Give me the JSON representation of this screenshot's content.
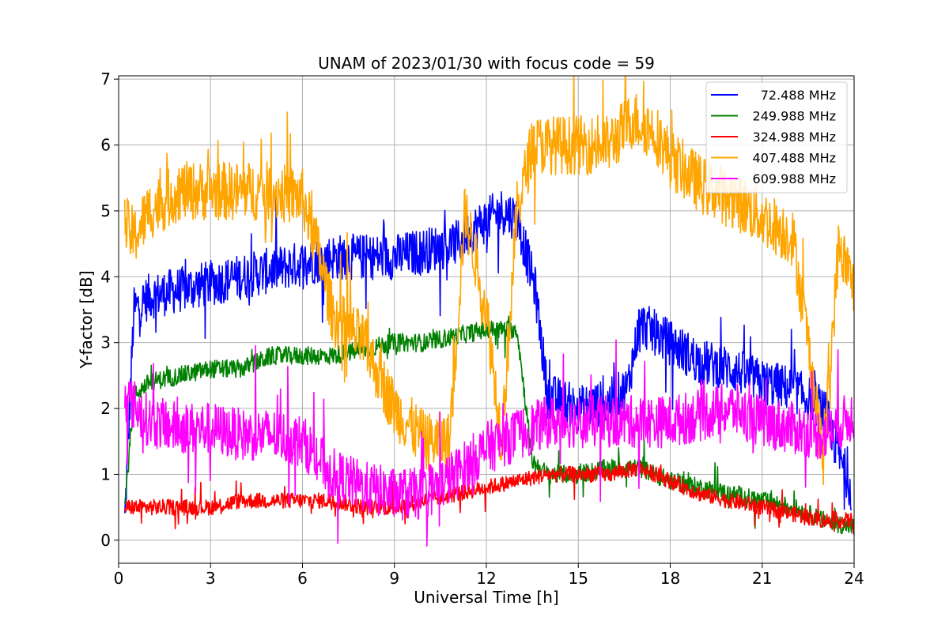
{
  "chart_data": {
    "type": "line",
    "title": "UNAM of 2023/01/30 with focus code = 59",
    "xlabel": "Universal Time [h]",
    "ylabel": "Y-factor [dB]",
    "xlim": [
      0,
      24
    ],
    "ylim": [
      -0.35,
      7.05
    ],
    "xticks": [
      0,
      3,
      6,
      9,
      12,
      15,
      18,
      21,
      24
    ],
    "yticks": [
      0,
      1,
      2,
      3,
      4,
      5,
      6,
      7
    ],
    "grid": true,
    "legend_position": "top-right",
    "series": [
      {
        "name": "72.488 MHz",
        "color": "#0000ff",
        "x": [
          0.2,
          0.5,
          1,
          2,
          3,
          4,
          5,
          6,
          7,
          8,
          9,
          10,
          11,
          11.8,
          12.5,
          13,
          13.6,
          14,
          15,
          16,
          16.6,
          17,
          18,
          19,
          20,
          21,
          22,
          23,
          23.5,
          23.9
        ],
        "y": [
          0.3,
          3.5,
          3.7,
          3.8,
          3.9,
          4.0,
          4.1,
          4.2,
          4.3,
          4.3,
          4.3,
          4.4,
          4.5,
          4.8,
          5.0,
          4.9,
          3.8,
          2.2,
          2.0,
          2.1,
          2.3,
          3.3,
          3.0,
          2.7,
          2.6,
          2.4,
          2.3,
          2.0,
          1.3,
          0.8
        ],
        "noise": 0.35
      },
      {
        "name": "249.988 MHz",
        "color": "#008000",
        "x": [
          0.2,
          0.5,
          1,
          2,
          3,
          4,
          5,
          6,
          7,
          8,
          9,
          10,
          11,
          12,
          13,
          13.5,
          14,
          15,
          16,
          17,
          18,
          19,
          20,
          21,
          22,
          23,
          24
        ],
        "y": [
          0.5,
          2.2,
          2.4,
          2.5,
          2.6,
          2.6,
          2.8,
          2.8,
          2.8,
          2.9,
          3.0,
          3.0,
          3.1,
          3.2,
          3.2,
          1.2,
          1.0,
          1.0,
          1.1,
          1.1,
          0.9,
          0.8,
          0.7,
          0.6,
          0.5,
          0.3,
          0.2
        ],
        "noise": 0.14
      },
      {
        "name": "324.988 MHz",
        "color": "#ff0000",
        "x": [
          0.2,
          1,
          2,
          3,
          4,
          5,
          6,
          7,
          8,
          9,
          10,
          11,
          12,
          13,
          14,
          15,
          16,
          17,
          18,
          19,
          20,
          21,
          22,
          23,
          24
        ],
        "y": [
          0.5,
          0.5,
          0.5,
          0.5,
          0.6,
          0.6,
          0.6,
          0.6,
          0.5,
          0.5,
          0.6,
          0.7,
          0.8,
          0.9,
          1.0,
          1.0,
          1.0,
          1.1,
          0.9,
          0.7,
          0.6,
          0.5,
          0.4,
          0.3,
          0.3
        ],
        "noise": 0.12
      },
      {
        "name": "407.488 MHz",
        "color": "#ffa500",
        "x": [
          0.2,
          0.5,
          1,
          2,
          3,
          4,
          5,
          6,
          6.5,
          7,
          8,
          9,
          10,
          10.8,
          11.3,
          12,
          12.5,
          13,
          13.5,
          14,
          15,
          16,
          16.8,
          17.5,
          18,
          19,
          20,
          21,
          22,
          22.5,
          23,
          23.5,
          24
        ],
        "y": [
          4.8,
          4.6,
          5.0,
          5.3,
          5.3,
          5.3,
          5.3,
          5.2,
          4.4,
          3.4,
          3.0,
          2.0,
          1.5,
          1.5,
          5.0,
          3.5,
          1.5,
          5.0,
          6.0,
          6.0,
          6.0,
          6.0,
          6.4,
          6.2,
          5.8,
          5.4,
          5.2,
          4.9,
          4.6,
          3.0,
          1.2,
          4.5,
          3.8
        ],
        "noise": 0.45
      },
      {
        "name": "609.988 MHz",
        "color": "#ff00ff",
        "x": [
          0.2,
          1,
          2,
          3,
          4,
          5,
          6,
          7,
          8,
          9,
          10,
          11,
          12,
          13,
          14,
          15,
          16,
          17,
          18,
          19,
          20,
          21,
          22,
          23,
          24
        ],
        "y": [
          2.2,
          1.8,
          1.7,
          1.7,
          1.6,
          1.6,
          1.5,
          1.0,
          0.8,
          0.7,
          0.7,
          1.0,
          1.4,
          1.6,
          1.8,
          1.8,
          1.8,
          1.8,
          1.8,
          1.9,
          2.0,
          1.8,
          1.7,
          1.6,
          1.9
        ],
        "noise": 0.4
      }
    ]
  }
}
